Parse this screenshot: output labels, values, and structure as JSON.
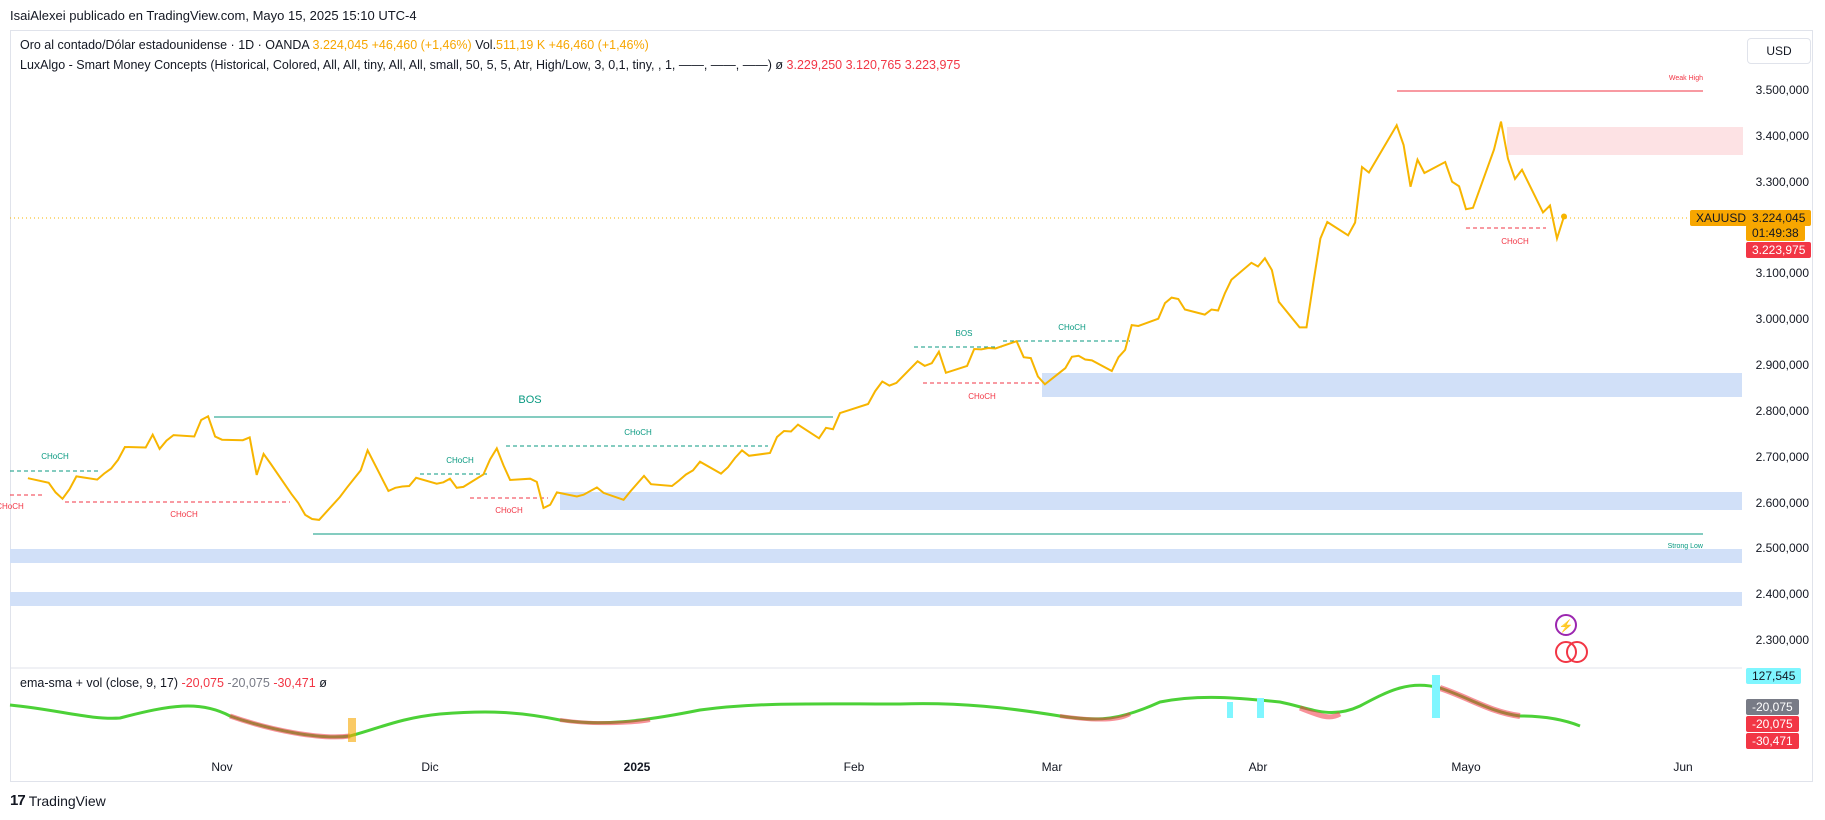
{
  "header": {
    "publisher": "IsaiAlexei publicado en TradingView.com, Mayo 15, 2025 15:10 UTC-4"
  },
  "legend_main": {
    "title": "Oro al contado/Dólar estadounidense · 1D · OANDA",
    "price": "3.224,045",
    "change": "+46,460 (+1,46%)",
    "vol_label": "Vol.",
    "vol_value": "511,19 K",
    "vol_change": "+46,460 (+1,46%)"
  },
  "legend_indicator": {
    "text": "LuxAlgo - Smart Money Concepts (Historical, Colored, All, All, tiny, All, All, small, 50, 5, 5, Atr, High/Low, 3, 0,1, tiny, , 1, ——, ——, ——)",
    "symbol": "ø",
    "v1": "3.229,250",
    "v2": "3.120,765",
    "v3": "3.223,975"
  },
  "legend_oscillator": {
    "text": "ema-sma + vol (close, 9, 17)",
    "v1": "-20,075",
    "v2": "-20,075",
    "v3": "-30,471",
    "symbol": "ø"
  },
  "currency_button": "USD",
  "price_axis": [
    "3.500,000",
    "3.400,000",
    "3.300,000",
    "3.100,000",
    "3.000,000",
    "2.900,000",
    "2.800,000",
    "2.700,000",
    "2.600,000",
    "2.500,000",
    "2.400,000",
    "2.300,000"
  ],
  "time_axis": [
    "Nov",
    "Dic",
    "2025",
    "Feb",
    "Mar",
    "Abr",
    "Mayo",
    "Jun"
  ],
  "badges": {
    "symbol": "XAUUSD",
    "last_price": "3.224,045",
    "countdown": "01:49:38",
    "smc_value": "3.223,975",
    "osc_vol": "127,545",
    "osc_v1": "-20,075",
    "osc_v2": "-20,075",
    "osc_v3": "-30,471"
  },
  "annotations": {
    "bos_main": "BOS",
    "bos_feb": "BOS",
    "choch": "CHoCH",
    "choch_cut": "CHoCH",
    "weak_high": "Weak High",
    "strong_low": "Strong Low"
  },
  "colors": {
    "price_line": "#f7b500",
    "bullish": "#089981",
    "bearish": "#f23645",
    "demand_zone": "#d1e0f8",
    "supply_zone": "#fde2e4",
    "osc_green": "#4cd137",
    "osc_red": "#f23645",
    "vol_cyan": "#7ff6ff"
  },
  "footer": {
    "brand": "TradingView"
  },
  "chart_data": {
    "type": "line",
    "title": "Oro al contado/Dólar estadounidense · 1D · OANDA",
    "xlabel": "",
    "ylabel": "",
    "ylim": [
      2250,
      3560
    ],
    "x": [
      "2024-10-04",
      "2024-10-07",
      "2024-10-08",
      "2024-10-09",
      "2024-10-10",
      "2024-10-11",
      "2024-10-14",
      "2024-10-15",
      "2024-10-16",
      "2024-10-17",
      "2024-10-18",
      "2024-10-21",
      "2024-10-22",
      "2024-10-23",
      "2024-10-24",
      "2024-10-25",
      "2024-10-28",
      "2024-10-29",
      "2024-10-30",
      "2024-10-31",
      "2024-11-01",
      "2024-11-04",
      "2024-11-05",
      "2024-11-06",
      "2024-11-07",
      "2024-11-08",
      "2024-11-11",
      "2024-11-12",
      "2024-11-13",
      "2024-11-14",
      "2024-11-15",
      "2024-11-18",
      "2024-11-19",
      "2024-11-20",
      "2024-11-21",
      "2024-11-22",
      "2024-11-25",
      "2024-11-26",
      "2024-11-27",
      "2024-11-28",
      "2024-11-29",
      "2024-12-02",
      "2024-12-03",
      "2024-12-04",
      "2024-12-05",
      "2024-12-06",
      "2024-12-09",
      "2024-12-10",
      "2024-12-11",
      "2024-12-12",
      "2024-12-13",
      "2024-12-16",
      "2024-12-17",
      "2024-12-18",
      "2024-12-19",
      "2024-12-20",
      "2024-12-23",
      "2024-12-24",
      "2024-12-26",
      "2024-12-27",
      "2024-12-30",
      "2024-12-31",
      "2025-01-02",
      "2025-01-03",
      "2025-01-06",
      "2025-01-07",
      "2025-01-08",
      "2025-01-09",
      "2025-01-10",
      "2025-01-13",
      "2025-01-14",
      "2025-01-15",
      "2025-01-16",
      "2025-01-17",
      "2025-01-20",
      "2025-01-21",
      "2025-01-22",
      "2025-01-23",
      "2025-01-24",
      "2025-01-27",
      "2025-01-28",
      "2025-01-29",
      "2025-01-30",
      "2025-01-31",
      "2025-02-03",
      "2025-02-04",
      "2025-02-05",
      "2025-02-06",
      "2025-02-07",
      "2025-02-10",
      "2025-02-11",
      "2025-02-12",
      "2025-02-13",
      "2025-02-14",
      "2025-02-17",
      "2025-02-18",
      "2025-02-19",
      "2025-02-20",
      "2025-02-21",
      "2025-02-24",
      "2025-02-25",
      "2025-02-26",
      "2025-02-27",
      "2025-02-28",
      "2025-03-03",
      "2025-03-04",
      "2025-03-05",
      "2025-03-06",
      "2025-03-07",
      "2025-03-10",
      "2025-03-11",
      "2025-03-12",
      "2025-03-13",
      "2025-03-14",
      "2025-03-17",
      "2025-03-18",
      "2025-03-19",
      "2025-03-20",
      "2025-03-21",
      "2025-03-24",
      "2025-03-25",
      "2025-03-26",
      "2025-03-27",
      "2025-03-28",
      "2025-03-31",
      "2025-04-01",
      "2025-04-02",
      "2025-04-03",
      "2025-04-04",
      "2025-04-07",
      "2025-04-08",
      "2025-04-09",
      "2025-04-10",
      "2025-04-11",
      "2025-04-14",
      "2025-04-15",
      "2025-04-16",
      "2025-04-17",
      "2025-04-21",
      "2025-04-22",
      "2025-04-23",
      "2025-04-24",
      "2025-04-25",
      "2025-04-28",
      "2025-04-29",
      "2025-04-30",
      "2025-05-01",
      "2025-05-02",
      "2025-05-05",
      "2025-05-06",
      "2025-05-07",
      "2025-05-08",
      "2025-05-09",
      "2025-05-12",
      "2025-05-13",
      "2025-05-14",
      "2025-05-15"
    ],
    "series": [
      {
        "values": [
          2653,
          2643,
          2622,
          2608,
          2629,
          2657,
          2650,
          2663,
          2674,
          2693,
          2721,
          2720,
          2748,
          2717,
          2735,
          2747,
          2744,
          2780,
          2788,
          2744,
          2737,
          2736,
          2742,
          2660,
          2706,
          2685,
          2619,
          2599,
          2573,
          2564,
          2562,
          2612,
          2632,
          2651,
          2670,
          2714,
          2625,
          2632,
          2635,
          2636,
          2654,
          2641,
          2644,
          2652,
          2632,
          2634,
          2661,
          2694,
          2718,
          2681,
          2649,
          2652,
          2645,
          2588,
          2595,
          2622,
          2613,
          2617,
          2633,
          2621,
          2606,
          2624,
          2658,
          2640,
          2636,
          2648,
          2661,
          2670,
          2689,
          2663,
          2677,
          2697,
          2714,
          2702,
          2708,
          2743,
          2756,
          2755,
          2770,
          2740,
          2763,
          2760,
          2795,
          2800,
          2815,
          2843,
          2864,
          2855,
          2861,
          2908,
          2898,
          2904,
          2929,
          2883,
          2898,
          2935,
          2934,
          2937,
          2936,
          2952,
          2917,
          2915,
          2875,
          2858,
          2893,
          2918,
          2920,
          2912,
          2910,
          2887,
          2917,
          2933,
          2987,
          2985,
          3001,
          3035,
          3047,
          3044,
          3021,
          3010,
          3021,
          3019,
          3056,
          3086,
          3123,
          3115,
          3133,
          3107,
          3038,
          2982,
          2982,
          3082,
          3176,
          3212,
          3183,
          3211,
          3332,
          3320,
          3423,
          3380,
          3289,
          3348,
          3319,
          3343,
          3300,
          3290,
          3240,
          3243,
          3370,
          3431,
          3350,
          3306,
          3326,
          3233,
          3248,
          3176,
          3224
        ]
      }
    ]
  }
}
